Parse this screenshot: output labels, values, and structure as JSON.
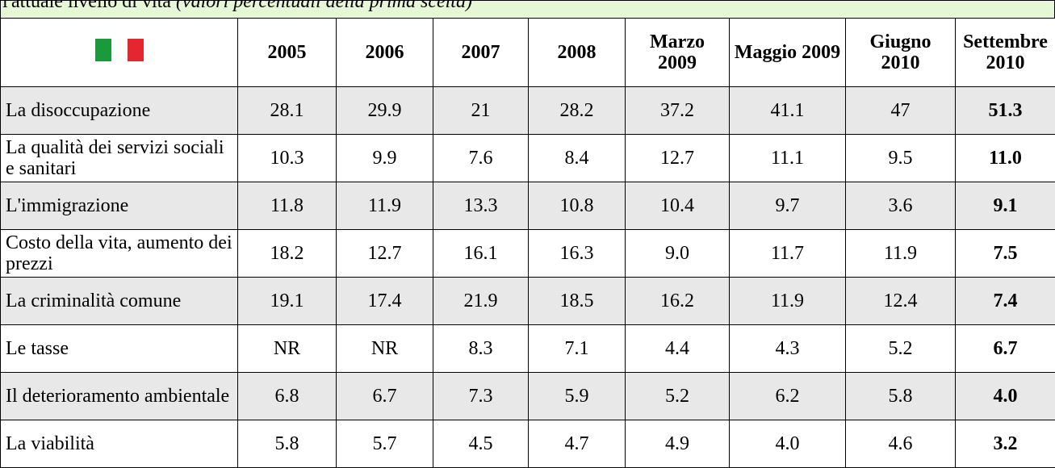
{
  "header": {
    "title": "l'attuale livello di vita",
    "subtitle": "(valori percentuali della prima scelta)"
  },
  "table": {
    "columns": [
      "2005",
      "2006",
      "2007",
      "2008",
      "Marzo 2009",
      "Maggio 2009",
      "Giugno 2010",
      "Settembre 2010"
    ],
    "rows": [
      {
        "label": "La disoccupazione",
        "values": [
          "28.1",
          "29.9",
          "21",
          "28.2",
          "37.2",
          "41.1",
          "47",
          "51.3"
        ]
      },
      {
        "label": "La qualità dei servizi sociali e sanitari",
        "values": [
          "10.3",
          "9.9",
          "7.6",
          "8.4",
          "12.7",
          "11.1",
          "9.5",
          "11.0"
        ]
      },
      {
        "label": "L'immigrazione",
        "values": [
          "11.8",
          "11.9",
          "13.3",
          "10.8",
          "10.4",
          "9.7",
          "3.6",
          "9.1"
        ]
      },
      {
        "label": "Costo della vita, aumento dei prezzi",
        "values": [
          "18.2",
          "12.7",
          "16.1",
          "16.3",
          "9.0",
          "11.7",
          "11.9",
          "7.5"
        ]
      },
      {
        "label": "La criminalità comune",
        "values": [
          "19.1",
          "17.4",
          "21.9",
          "18.5",
          "16.2",
          "11.9",
          "12.4",
          "7.4"
        ]
      },
      {
        "label": "Le tasse",
        "values": [
          "NR",
          "NR",
          "8.3",
          "7.1",
          "4.4",
          "4.3",
          "5.2",
          "6.7"
        ]
      },
      {
        "label": "Il deterioramento ambientale",
        "values": [
          "6.8",
          "6.7",
          "7.3",
          "5.9",
          "5.2",
          "6.2",
          "5.8",
          "4.0"
        ]
      },
      {
        "label": "La viabilità",
        "values": [
          "5.8",
          "5.7",
          "4.5",
          "4.7",
          "4.9",
          "4.0",
          "4.6",
          "3.2"
        ]
      }
    ]
  }
}
